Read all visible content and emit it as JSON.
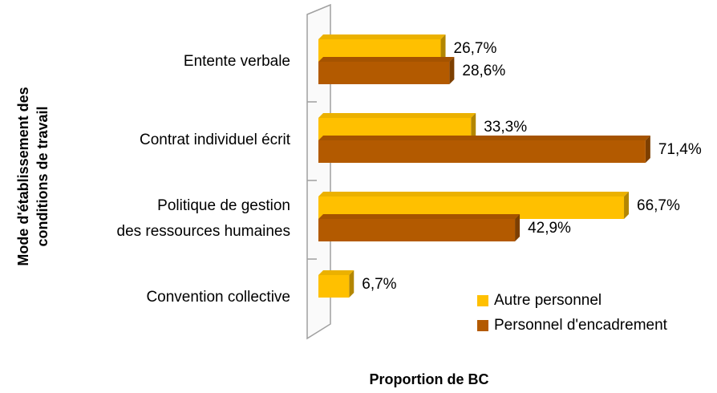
{
  "chart_data": {
    "type": "bar",
    "orientation": "horizontal",
    "categories": [
      "Entente verbale",
      "Contrat individuel écrit",
      [
        "Politique de gestion",
        "des ressources humaines"
      ],
      "Convention collective"
    ],
    "series": [
      {
        "name": "Autre personnel",
        "color": "#FFC000",
        "values": [
          26.7,
          33.3,
          66.7,
          6.7
        ],
        "value_labels": [
          "26,7%",
          "33,3%",
          "66,7%",
          "6,7%"
        ]
      },
      {
        "name": "Personnel d'encadrement",
        "color": "#B35A00",
        "values": [
          28.6,
          71.4,
          42.9,
          null
        ],
        "value_labels": [
          "28,6%",
          "71,4%",
          "42,9%",
          null
        ]
      }
    ],
    "xlim": [
      0,
      80
    ],
    "xlabel": "Proportion de BC",
    "ylabel": [
      "Mode d'établissement des",
      "conditions de travail"
    ],
    "legend": "bottom-right"
  }
}
